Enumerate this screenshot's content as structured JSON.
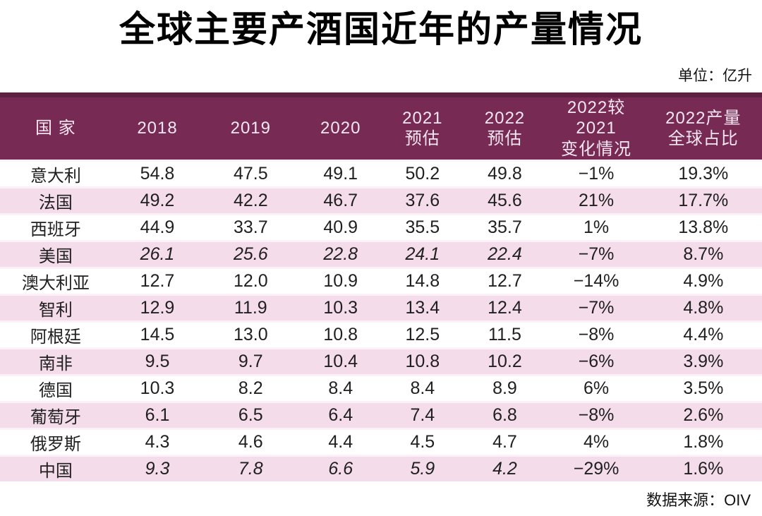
{
  "title": "全球主要产酒国近年的产量情况",
  "unit_note": "单位：亿升",
  "source_note": "数据来源：OIV",
  "colors": {
    "header_bg": "#762a54",
    "header_top_edge": "#5e1f41",
    "header_text": "#f6e7f0",
    "row_pink": "#f5dcea",
    "row_white": "#ffffff",
    "row_separator": "#fcf1f7",
    "body_text": "#202020",
    "title_text": "#000000"
  },
  "chart_data": {
    "type": "table",
    "title": "全球主要产酒国近年的产量情况",
    "unit": "亿升",
    "source": "OIV",
    "columns": [
      {
        "key": "country",
        "label": "国  家",
        "label2": ""
      },
      {
        "key": "y2018",
        "label": "2018",
        "label2": ""
      },
      {
        "key": "y2019",
        "label": "2019",
        "label2": ""
      },
      {
        "key": "y2020",
        "label": "2020",
        "label2": ""
      },
      {
        "key": "y2021",
        "label": "2021",
        "label2": "预估"
      },
      {
        "key": "y2022",
        "label": "2022",
        "label2": "预估"
      },
      {
        "key": "change",
        "label": "2022较2021",
        "label2": "变化情况"
      },
      {
        "key": "share",
        "label": "2022产量",
        "label2": "全球占比"
      }
    ],
    "rows": [
      {
        "country": "意大利",
        "values": [
          "54.8",
          "47.5",
          "49.1",
          "50.2",
          "49.8"
        ],
        "change": "−1%",
        "share": "19.3%",
        "italic": false
      },
      {
        "country": "法国",
        "values": [
          "49.2",
          "42.2",
          "46.7",
          "37.6",
          "45.6"
        ],
        "change": "21%",
        "share": "17.7%",
        "italic": false
      },
      {
        "country": "西班牙",
        "values": [
          "44.9",
          "33.7",
          "40.9",
          "35.5",
          "35.7"
        ],
        "change": "1%",
        "share": "13.8%",
        "italic": false
      },
      {
        "country": "美国",
        "values": [
          "26.1",
          "25.6",
          "22.8",
          "24.1",
          "22.4"
        ],
        "change": "−7%",
        "share": "8.7%",
        "italic": true
      },
      {
        "country": "澳大利亚",
        "values": [
          "12.7",
          "12.0",
          "10.9",
          "14.8",
          "12.7"
        ],
        "change": "−14%",
        "share": "4.9%",
        "italic": false
      },
      {
        "country": "智利",
        "values": [
          "12.9",
          "11.9",
          "10.3",
          "13.4",
          "12.4"
        ],
        "change": "−7%",
        "share": "4.8%",
        "italic": false
      },
      {
        "country": "阿根廷",
        "values": [
          "14.5",
          "13.0",
          "10.8",
          "12.5",
          "11.5"
        ],
        "change": "−8%",
        "share": "4.4%",
        "italic": false
      },
      {
        "country": "南非",
        "values": [
          "9.5",
          "9.7",
          "10.4",
          "10.8",
          "10.2"
        ],
        "change": "−6%",
        "share": "3.9%",
        "italic": false
      },
      {
        "country": "德国",
        "values": [
          "10.3",
          "8.2",
          "8.4",
          "8.4",
          "8.9"
        ],
        "change": "6%",
        "share": "3.5%",
        "italic": false
      },
      {
        "country": "葡萄牙",
        "values": [
          "6.1",
          "6.5",
          "6.4",
          "7.4",
          "6.8"
        ],
        "change": "−8%",
        "share": "2.6%",
        "italic": false
      },
      {
        "country": "俄罗斯",
        "values": [
          "4.3",
          "4.6",
          "4.4",
          "4.5",
          "4.7"
        ],
        "change": "4%",
        "share": "1.8%",
        "italic": false
      },
      {
        "country": "中国",
        "values": [
          "9.3",
          "7.8",
          "6.6",
          "5.9",
          "4.2"
        ],
        "change": "−29%",
        "share": "1.6%",
        "italic": true
      }
    ]
  }
}
